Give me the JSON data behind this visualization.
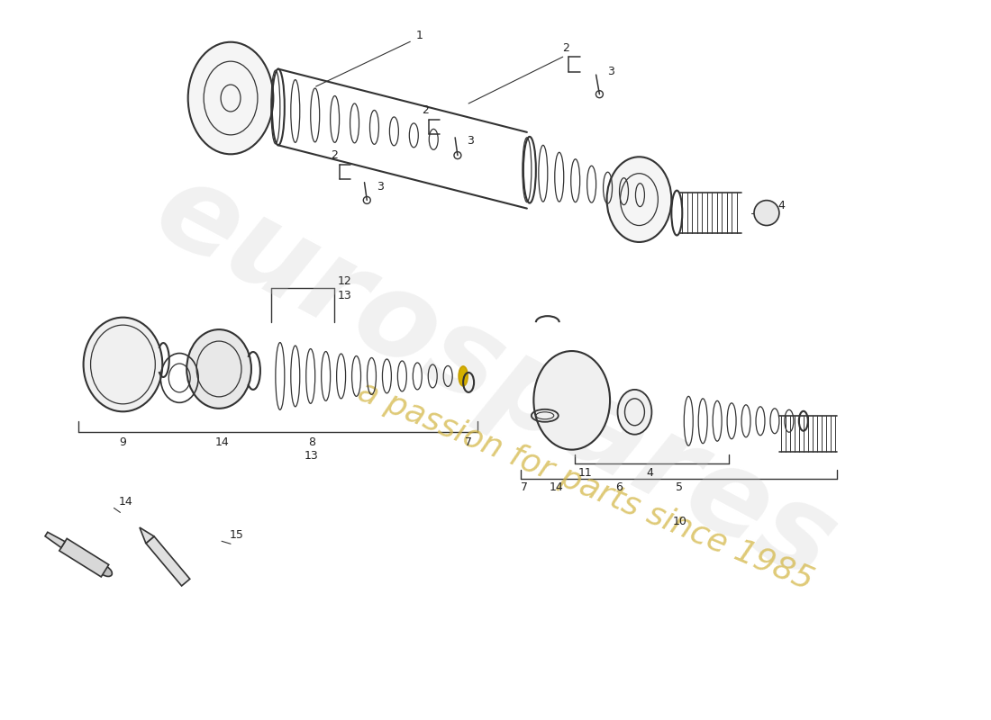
{
  "background_color": "#ffffff",
  "line_color": "#333333",
  "label_color": "#222222",
  "watermark_color1": "#cccccc",
  "watermark_color2": "#d4b84a",
  "watermark_text1": "eurospares",
  "watermark_text2": "a passion for parts since 1985"
}
